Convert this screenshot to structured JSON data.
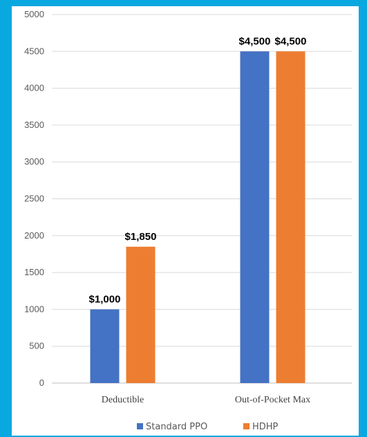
{
  "chart_data": {
    "type": "bar",
    "title": "",
    "xlabel": "",
    "ylabel": "",
    "categories": [
      "Deductible",
      "Out-of-Pocket Max"
    ],
    "series": [
      {
        "name": "Standard PPO",
        "color": "#4472c4",
        "values": [
          1000,
          4500
        ],
        "labels": [
          "$1,000",
          "$4,500"
        ]
      },
      {
        "name": "HDHP",
        "color": "#ed7d31",
        "values": [
          1850,
          4500
        ],
        "labels": [
          "$1,850",
          "$4,500"
        ]
      }
    ],
    "ylim": [
      0,
      5000
    ],
    "y_ticks": [
      0,
      500,
      1000,
      1500,
      2000,
      2500,
      3000,
      3500,
      4000,
      4500,
      5000
    ],
    "grid": true,
    "legend_position": "bottom"
  },
  "colors": {
    "background": "#0aa8e0",
    "panel": "#ffffff",
    "gridline": "#d9d9d9"
  }
}
